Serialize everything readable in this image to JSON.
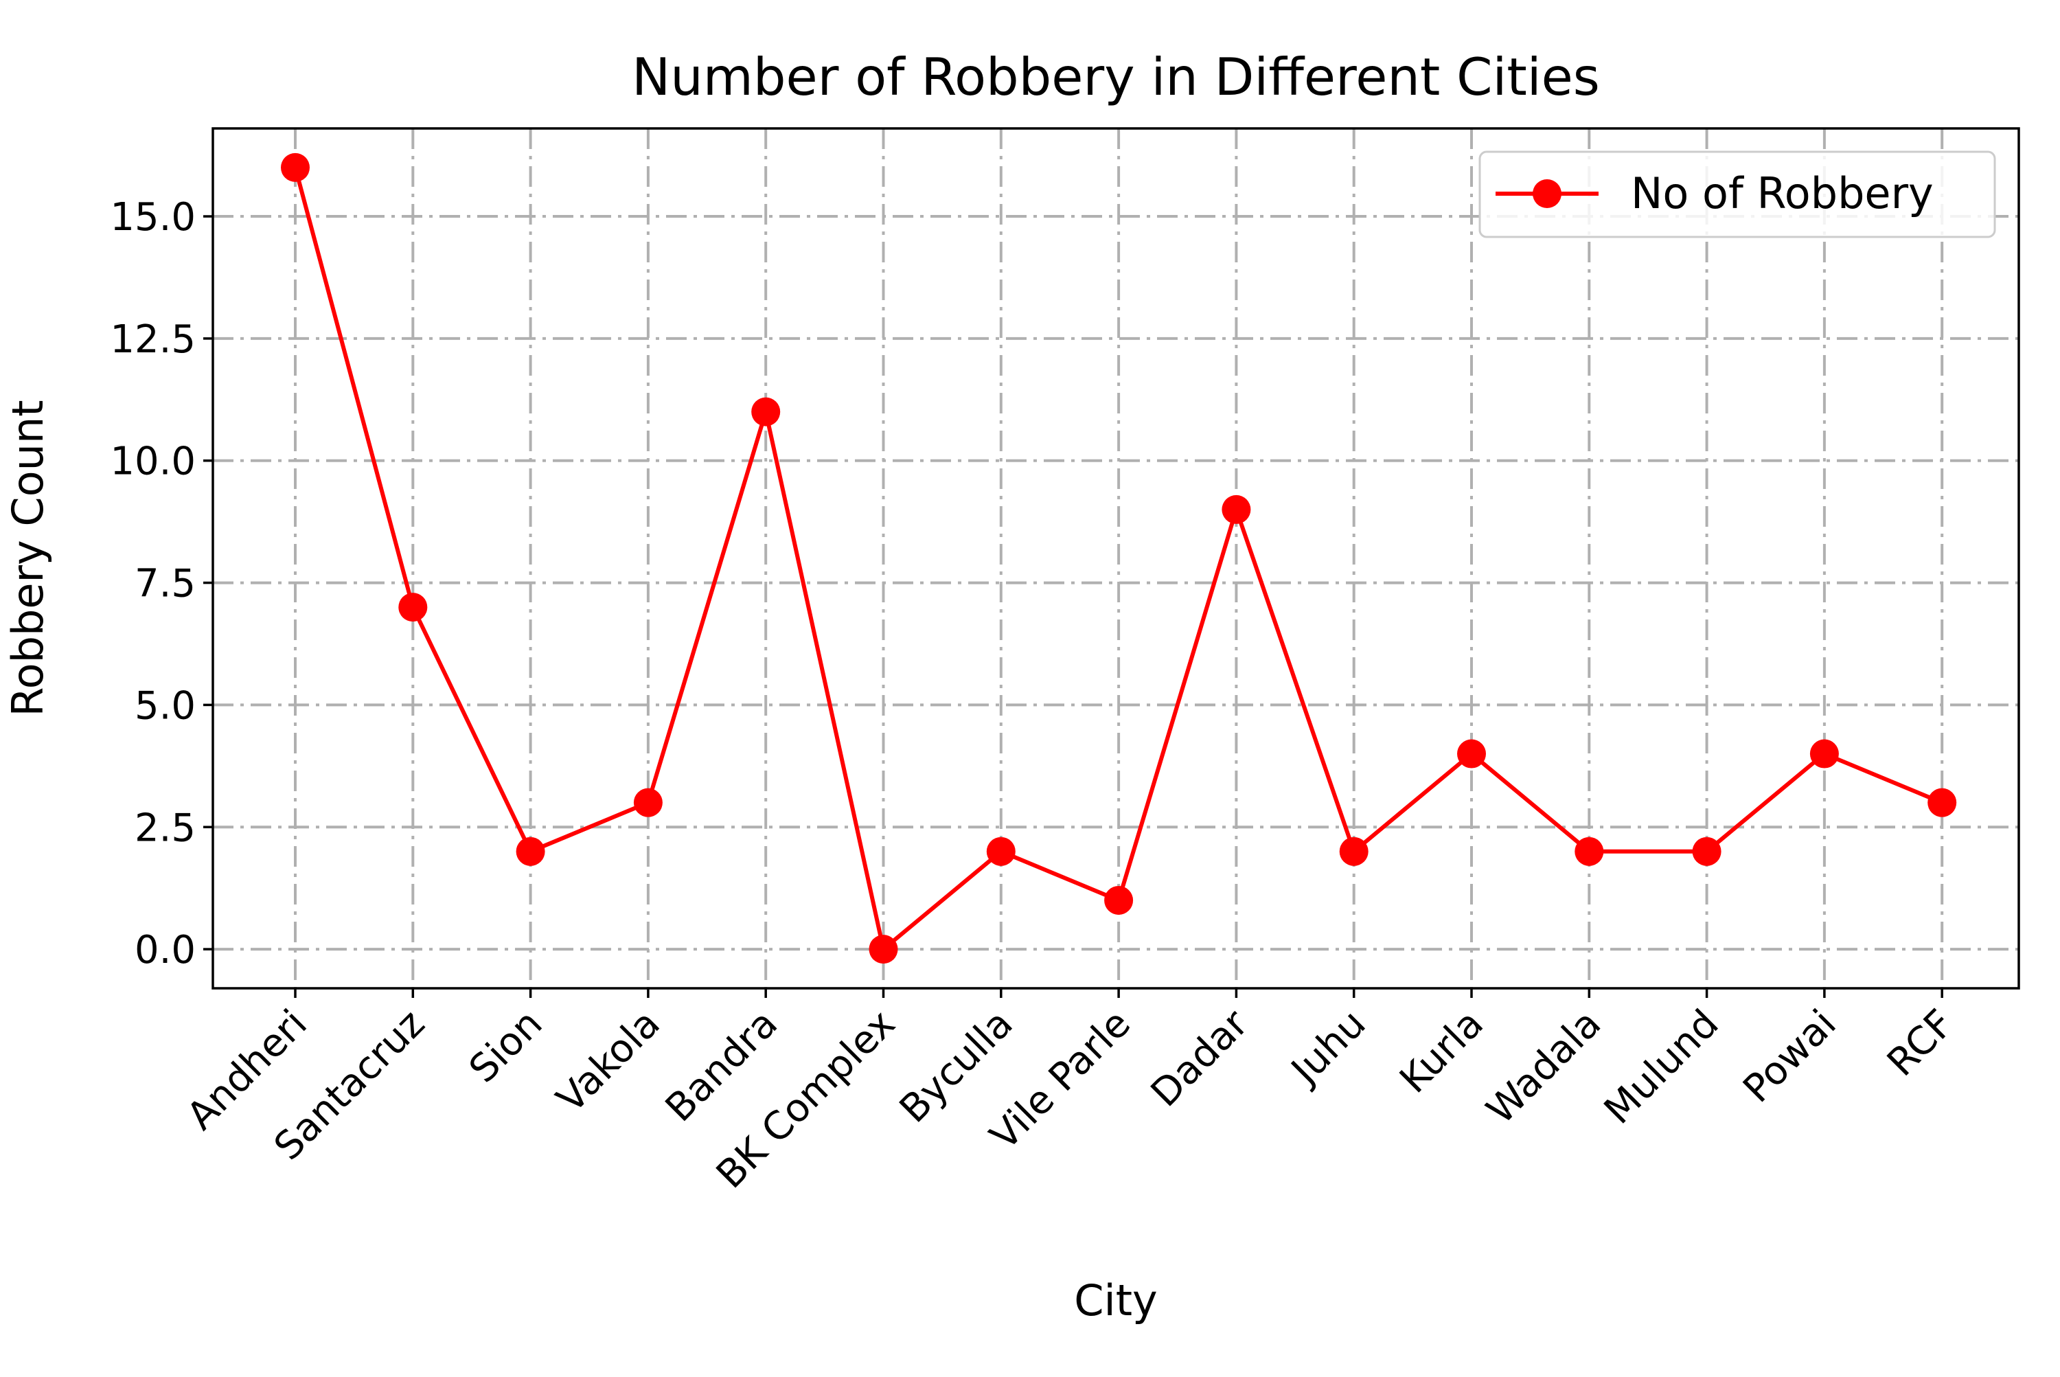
{
  "chart_data": {
    "type": "line",
    "title": "Number of Robbery in Different Cities",
    "xlabel": "City",
    "ylabel": "Robbery Count",
    "categories": [
      "Andheri",
      "Santacruz",
      "Sion",
      "Vakola",
      "Bandra",
      "BK Complex",
      "Byculla",
      "Vile Parle",
      "Dadar",
      "Juhu",
      "Kurla",
      "Wadala",
      "Mulund",
      "Powai",
      "RCF"
    ],
    "series": [
      {
        "name": "No of Robbery",
        "values": [
          16,
          7,
          2,
          3,
          11,
          0,
          2,
          1,
          9,
          2,
          4,
          2,
          2,
          4,
          3
        ],
        "color": "#ff0000",
        "marker": "circle"
      }
    ],
    "ylim": [
      -0.8,
      16.8
    ],
    "yticks": [
      "0.0",
      "2.5",
      "5.0",
      "7.5",
      "10.0",
      "12.5",
      "15.0"
    ],
    "grid": true,
    "grid_style": "dash-dot",
    "legend_position": "top-right",
    "x_tick_rotation": -45
  }
}
